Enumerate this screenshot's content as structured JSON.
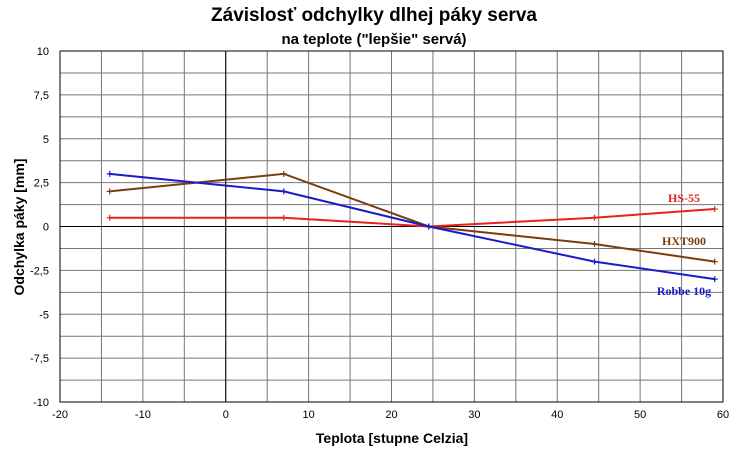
{
  "chart_data": {
    "type": "line",
    "title": "Závislosť odchylky dlhej páky serva",
    "subtitle": "na teplote   (\"lepšie\" servá)",
    "xlabel": "Teplota [stupne Celzia]",
    "ylabel": "Odchylka páky [mm]",
    "xlim": [
      -20,
      60
    ],
    "ylim": [
      -10,
      10
    ],
    "x_ticks": [
      "-20",
      "-10",
      "0",
      "10",
      "20",
      "30",
      "40",
      "50",
      "60"
    ],
    "y_ticks": [
      "10",
      "7,5",
      "5",
      "2,5",
      "0",
      "-2,5",
      "-5",
      "-7,5",
      "-10"
    ],
    "grid": true,
    "legend": "inline labels near right end of each series",
    "series": [
      {
        "name": "HS-55",
        "color": "#e8221c",
        "x": [
          -14,
          7,
          24.5,
          44.5,
          59
        ],
        "y": [
          0.5,
          0.5,
          0,
          0.5,
          1
        ]
      },
      {
        "name": "HXT900",
        "color": "#7a3d0f",
        "x": [
          -14,
          7,
          24.5,
          44.5,
          59
        ],
        "y": [
          2,
          3,
          0,
          -1,
          -2
        ]
      },
      {
        "name": "Robbe 10g",
        "color": "#1a1acc",
        "x": [
          -14,
          7,
          24.5,
          44.5,
          59
        ],
        "y": [
          3,
          2,
          0,
          -2,
          -3
        ]
      }
    ]
  }
}
